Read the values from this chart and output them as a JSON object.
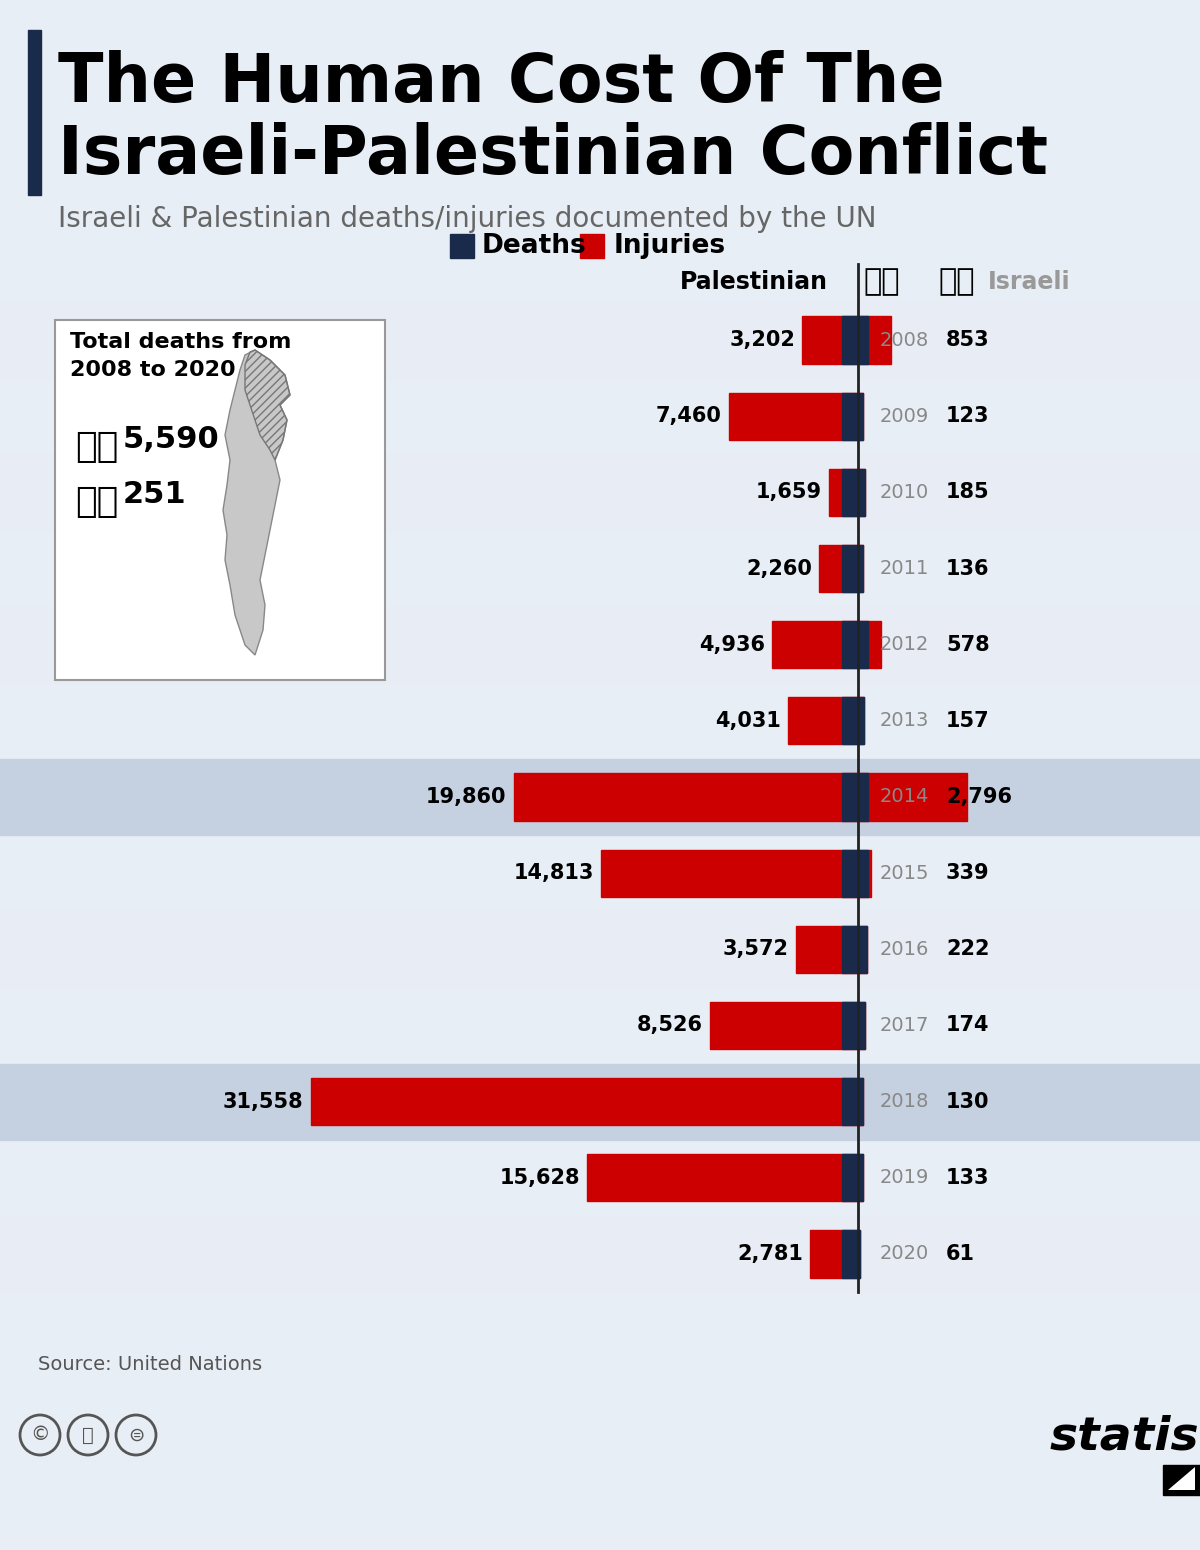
{
  "title_line1": "The Human Cost Of The",
  "title_line2": "Israeli-Palestinian Conflict",
  "subtitle": "Israeli & Palestinian deaths/injuries documented by the UN",
  "background_color": "#e8eef5",
  "years": [
    2008,
    2009,
    2010,
    2011,
    2012,
    2013,
    2014,
    2015,
    2016,
    2017,
    2018,
    2019,
    2020
  ],
  "pal_injuries": [
    3202,
    7460,
    1659,
    2260,
    4936,
    4031,
    19860,
    14813,
    3572,
    8526,
    31558,
    15628,
    2781
  ],
  "isr_injuries": [
    853,
    123,
    185,
    136,
    578,
    157,
    2796,
    339,
    222,
    174,
    130,
    133,
    61
  ],
  "injury_color": "#cc0000",
  "death_color": "#1a2a4a",
  "highlighted_rows": [
    2014,
    2018
  ],
  "highlighted_bg": "#c5d0e0",
  "alt_row_bg": "#e8edf5",
  "source_text": "Source: United Nations",
  "deaths_label": "Deaths",
  "injuries_label": "Injuries",
  "pal_label": "Palestinian",
  "isr_label": "Israeli",
  "total_pal_deaths": "5,590",
  "total_isr_deaths": "251",
  "map_box_text": "Total deaths from\n2008 to 2020"
}
